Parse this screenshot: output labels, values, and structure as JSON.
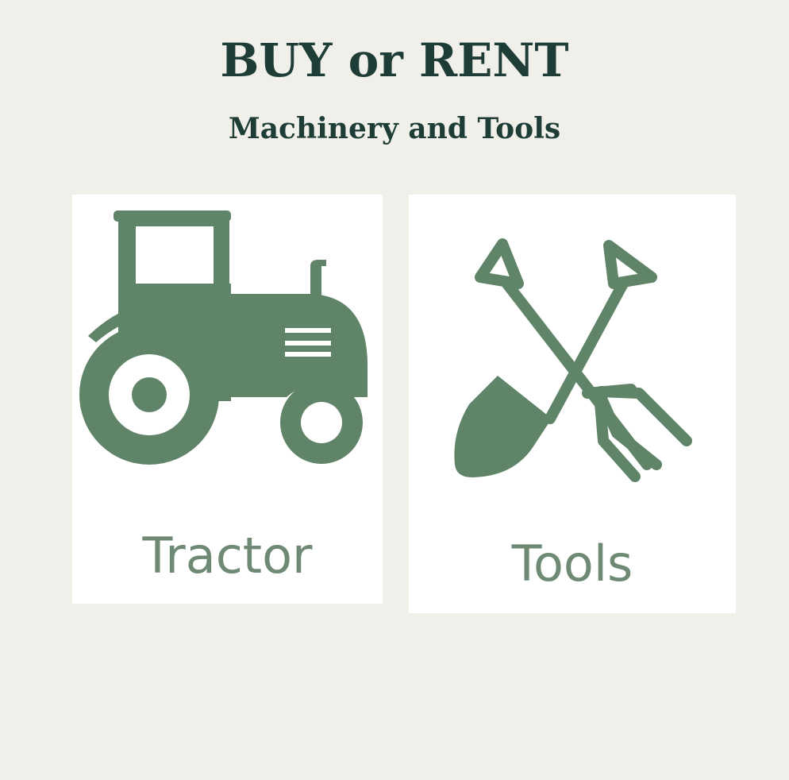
{
  "header": {
    "title": "BUY or RENT",
    "subtitle": "Machinery and Tools"
  },
  "cards": [
    {
      "label": "Tractor",
      "icon": "tractor-icon"
    },
    {
      "label": "Tools",
      "icon": "shovel-pitchfork-icon"
    }
  ],
  "colors": {
    "background": "#f0efea",
    "heading": "#1e3d36",
    "icon_green": "#5f8467",
    "label_green": "#6e8a74",
    "card_bg": "#ffffff"
  }
}
